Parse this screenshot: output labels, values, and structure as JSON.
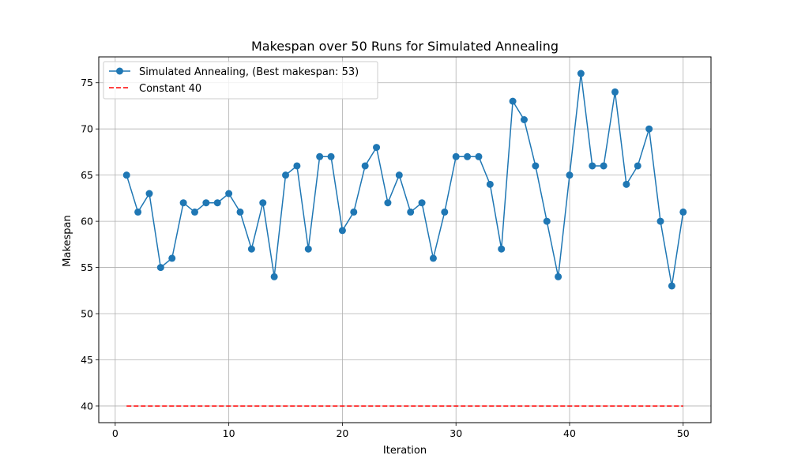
{
  "chart_data": {
    "type": "line",
    "title": "Makespan over 50 Runs for Simulated Annealing",
    "xlabel": "Iteration",
    "ylabel": "Makespan",
    "xlim": [
      -1.45,
      52.45
    ],
    "ylim": [
      38.2,
      77.8
    ],
    "x_ticks": [
      0,
      10,
      20,
      30,
      40,
      50
    ],
    "y_ticks": [
      40,
      45,
      50,
      55,
      60,
      65,
      70,
      75
    ],
    "grid": true,
    "legend_position": "top-left",
    "series": [
      {
        "name": "Simulated Annealing, (Best makespan: 53)",
        "color": "#1f77b4",
        "style": "solid-with-circle-markers",
        "x": [
          1,
          2,
          3,
          4,
          5,
          6,
          7,
          8,
          9,
          10,
          11,
          12,
          13,
          14,
          15,
          16,
          17,
          18,
          19,
          20,
          21,
          22,
          23,
          24,
          25,
          26,
          27,
          28,
          29,
          30,
          31,
          32,
          33,
          34,
          35,
          36,
          37,
          38,
          39,
          40,
          41,
          42,
          43,
          44,
          45,
          46,
          47,
          48,
          49,
          50
        ],
        "values": [
          65,
          61,
          63,
          55,
          56,
          62,
          61,
          62,
          62,
          63,
          61,
          57,
          62,
          54,
          65,
          66,
          57,
          67,
          67,
          59,
          61,
          66,
          68,
          62,
          65,
          61,
          62,
          56,
          61,
          67,
          67,
          67,
          64,
          57,
          73,
          71,
          66,
          60,
          54,
          65,
          76,
          66,
          66,
          74,
          64,
          66,
          70,
          60,
          53,
          61
        ]
      },
      {
        "name": "Constant 40",
        "color": "#ff0000",
        "style": "dashed",
        "x": [
          1,
          50
        ],
        "values": [
          40,
          40
        ]
      }
    ]
  }
}
